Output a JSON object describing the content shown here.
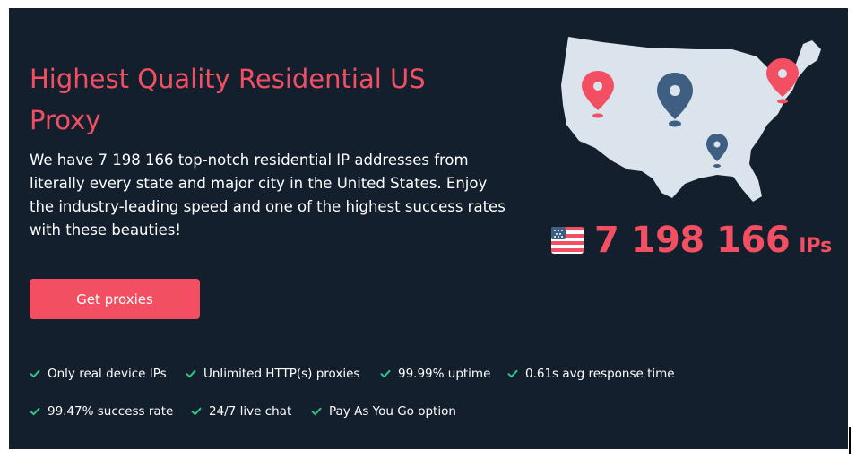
{
  "hero": {
    "title": "Highest Quality Residential US Proxy",
    "description": "We have 7 198 166 top-notch residential IP addresses from literally every state and major city in the United States. Enjoy the industry-leading speed and one of the highest success rates with these beauties!",
    "cta_label": "Get proxies"
  },
  "stats": {
    "ip_count": "7 198 166",
    "ip_unit": "IPs",
    "flag_icon": "us-flag-icon",
    "map_icon": "us-map-icon"
  },
  "features": [
    "Only real device IPs",
    "Unlimited HTTP(s) proxies",
    "99.99% uptime",
    "0.61s avg response time",
    "99.47% success rate",
    "24/7 live chat",
    "Pay As You Go option"
  ],
  "colors": {
    "background": "#141f2e",
    "accent": "#f34f63",
    "check": "#2fc58a",
    "map": "#dbe3ec",
    "pin_dark": "#3e5f82"
  }
}
